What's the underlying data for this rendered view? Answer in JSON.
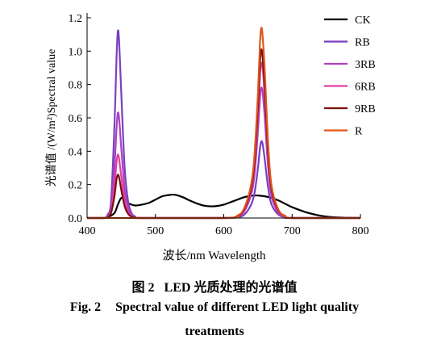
{
  "chart_data": {
    "type": "line",
    "xlabel": "波长/nm Wavelength",
    "ylabel": "光谱值 /(W/m²)Spectral value",
    "xlim": [
      400,
      800
    ],
    "ylim": [
      0,
      1.2
    ],
    "xticks": [
      400,
      500,
      600,
      700,
      800
    ],
    "yticks": [
      0.0,
      0.2,
      0.4,
      0.6,
      0.8,
      1.0,
      1.2
    ],
    "ytick_labels": [
      "0.0",
      "0.2",
      "0.4",
      "0.6",
      "0.8",
      "1.0",
      "1.2"
    ],
    "legend_position": "top-right",
    "grid": false,
    "series": [
      {
        "name": "CK",
        "color": "#000000",
        "x": [
          400,
          420,
          430,
          440,
          445,
          450,
          455,
          460,
          470,
          480,
          490,
          500,
          510,
          520,
          525,
          530,
          540,
          550,
          560,
          570,
          580,
          590,
          600,
          610,
          620,
          630,
          640,
          650,
          660,
          670,
          680,
          690,
          700,
          720,
          740,
          760,
          780,
          800
        ],
        "y": [
          0.0,
          0.0,
          0.005,
          0.03,
          0.08,
          0.12,
          0.11,
          0.09,
          0.075,
          0.08,
          0.09,
          0.11,
          0.13,
          0.138,
          0.14,
          0.138,
          0.125,
          0.105,
          0.088,
          0.075,
          0.07,
          0.072,
          0.08,
          0.095,
          0.11,
          0.125,
          0.133,
          0.135,
          0.13,
          0.12,
          0.105,
          0.085,
          0.065,
          0.035,
          0.015,
          0.005,
          0.002,
          0.0
        ]
      },
      {
        "name": "RB",
        "color": "#7a3fbf",
        "x": [
          400,
          425,
          430,
          435,
          440,
          443,
          445,
          447,
          450,
          455,
          460,
          465,
          470,
          480,
          600,
          620,
          630,
          640,
          645,
          650,
          653,
          655,
          657,
          660,
          665,
          670,
          680,
          690,
          700,
          800
        ],
        "y": [
          0.0,
          0.0,
          0.02,
          0.1,
          0.55,
          0.95,
          1.12,
          1.05,
          0.75,
          0.3,
          0.1,
          0.03,
          0.01,
          0.0,
          0.0,
          0.005,
          0.02,
          0.08,
          0.15,
          0.3,
          0.42,
          0.46,
          0.44,
          0.35,
          0.18,
          0.08,
          0.02,
          0.005,
          0.0,
          0.0
        ]
      },
      {
        "name": "3RB",
        "color": "#b03fbf",
        "x": [
          400,
          425,
          430,
          435,
          440,
          443,
          445,
          447,
          450,
          455,
          460,
          465,
          470,
          480,
          600,
          620,
          630,
          640,
          645,
          650,
          653,
          655,
          657,
          660,
          665,
          670,
          680,
          690,
          700,
          800
        ],
        "y": [
          0.0,
          0.0,
          0.01,
          0.06,
          0.3,
          0.53,
          0.63,
          0.59,
          0.42,
          0.17,
          0.06,
          0.02,
          0.005,
          0.0,
          0.0,
          0.01,
          0.04,
          0.14,
          0.26,
          0.52,
          0.72,
          0.78,
          0.75,
          0.6,
          0.3,
          0.13,
          0.03,
          0.008,
          0.0,
          0.0
        ]
      },
      {
        "name": "6RB",
        "color": "#e040a0",
        "x": [
          400,
          425,
          430,
          435,
          440,
          443,
          445,
          447,
          450,
          455,
          460,
          465,
          470,
          480,
          600,
          620,
          630,
          640,
          645,
          650,
          653,
          655,
          657,
          660,
          665,
          670,
          680,
          690,
          700,
          800
        ],
        "y": [
          0.0,
          0.0,
          0.007,
          0.04,
          0.19,
          0.33,
          0.38,
          0.35,
          0.25,
          0.1,
          0.035,
          0.01,
          0.004,
          0.0,
          0.0,
          0.012,
          0.05,
          0.17,
          0.31,
          0.62,
          0.86,
          0.93,
          0.89,
          0.72,
          0.36,
          0.16,
          0.04,
          0.01,
          0.0,
          0.0
        ]
      },
      {
        "name": "9RB",
        "color": "#7a0f0f",
        "x": [
          400,
          425,
          430,
          435,
          440,
          443,
          445,
          447,
          450,
          455,
          460,
          465,
          470,
          480,
          600,
          620,
          630,
          640,
          645,
          650,
          653,
          655,
          657,
          660,
          665,
          670,
          680,
          690,
          700,
          800
        ],
        "y": [
          0.0,
          0.0,
          0.005,
          0.03,
          0.13,
          0.23,
          0.26,
          0.24,
          0.17,
          0.07,
          0.025,
          0.008,
          0.003,
          0.0,
          0.0,
          0.013,
          0.055,
          0.18,
          0.34,
          0.67,
          0.93,
          1.01,
          0.96,
          0.78,
          0.39,
          0.17,
          0.045,
          0.012,
          0.0,
          0.0
        ]
      },
      {
        "name": "R",
        "color": "#e0561c",
        "x": [
          400,
          600,
          620,
          630,
          640,
          645,
          650,
          653,
          655,
          657,
          660,
          665,
          670,
          680,
          690,
          700,
          800
        ],
        "y": [
          0.0,
          0.0,
          0.015,
          0.06,
          0.2,
          0.38,
          0.75,
          1.05,
          1.14,
          1.08,
          0.88,
          0.44,
          0.19,
          0.05,
          0.012,
          0.0,
          0.0
        ]
      }
    ]
  },
  "caption": {
    "cn_label": "图 2",
    "cn_text": "LED 光质处理的光谱值",
    "en_label": "Fig. 2",
    "en_text": "Spectral value of different LED light quality",
    "en_text_line2": "treatments"
  }
}
